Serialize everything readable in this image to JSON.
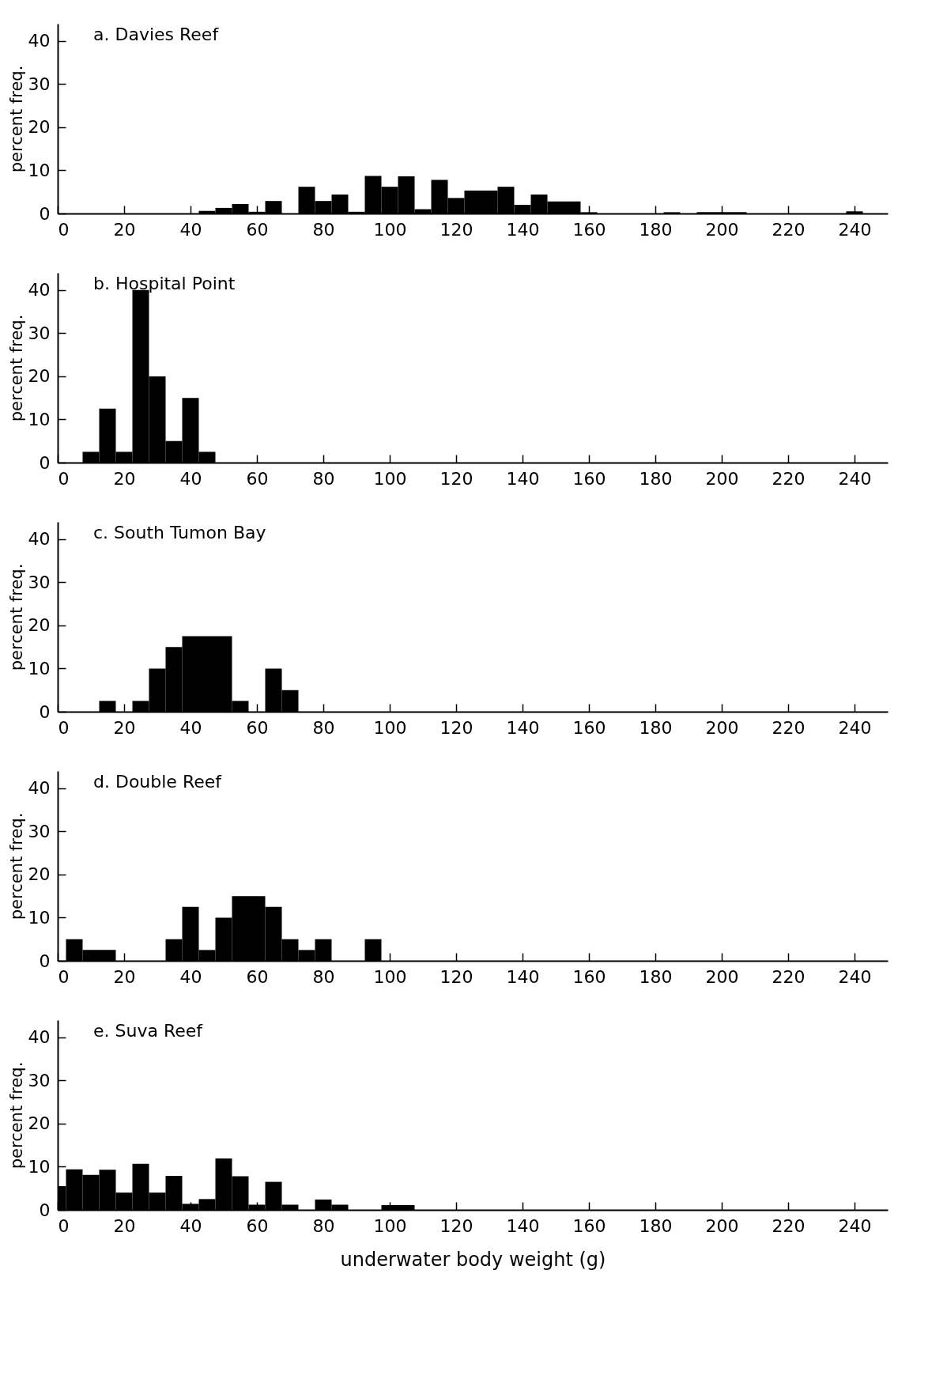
{
  "chart_data": [
    {
      "type": "histogram",
      "title": "a. Davies Reef",
      "ylabel": "percent freq.",
      "color": "#000000",
      "grid": false,
      "xlim": [
        0,
        250
      ],
      "xticks": [
        0,
        20,
        40,
        60,
        80,
        100,
        120,
        140,
        160,
        180,
        200,
        220,
        240
      ],
      "ylim": [
        0,
        44
      ],
      "yticks": [
        0,
        10,
        20,
        30,
        40
      ],
      "bins": [
        42.5,
        47.5,
        52.5,
        57.5,
        62.5,
        67.5,
        72.5,
        77.5,
        82.5,
        87.5,
        92.5,
        97.5,
        102.5,
        107.5,
        112.5,
        117.5,
        122.5,
        132.5,
        137.5,
        142.5,
        147.5,
        157.5,
        162.5,
        182.5,
        187.5,
        192.5,
        207.5,
        237.5,
        242.5
      ],
      "values": [
        0.6,
        1.3,
        2.2,
        0.4,
        2.9,
        0,
        6.2,
        2.9,
        4.4,
        0.4,
        8.7,
        6.2,
        8.6,
        1.0,
        7.8,
        3.6,
        5.3,
        6.2,
        2.0,
        4.4,
        2.8,
        0.3,
        0,
        0.3,
        0,
        0.3,
        0,
        0.5
      ]
    },
    {
      "type": "histogram",
      "title": "b. Hospital Point",
      "ylabel": "percent freq.",
      "color": "#000000",
      "grid": false,
      "xlim": [
        0,
        250
      ],
      "xticks": [
        0,
        20,
        40,
        60,
        80,
        100,
        120,
        140,
        160,
        180,
        200,
        220,
        240
      ],
      "ylim": [
        0,
        44
      ],
      "yticks": [
        0,
        10,
        20,
        30,
        40
      ],
      "bins": [
        7.5,
        12.5,
        17.5,
        22.5,
        27.5,
        32.5,
        37.5,
        42.5,
        47.5
      ],
      "values": [
        2.5,
        12.5,
        2.5,
        40,
        20,
        5,
        15,
        2.5
      ]
    },
    {
      "type": "histogram",
      "title": "c. South Tumon Bay",
      "ylabel": "percent freq.",
      "color": "#000000",
      "grid": false,
      "xlim": [
        0,
        250
      ],
      "xticks": [
        0,
        20,
        40,
        60,
        80,
        100,
        120,
        140,
        160,
        180,
        200,
        220,
        240
      ],
      "ylim": [
        0,
        44
      ],
      "yticks": [
        0,
        10,
        20,
        30,
        40
      ],
      "bins": [
        12.5,
        17.5,
        22.5,
        27.5,
        32.5,
        37.5,
        52.5,
        57.5,
        62.5,
        67.5,
        72.5
      ],
      "values": [
        2.5,
        0,
        2.5,
        10,
        15,
        17.5,
        2.5,
        0,
        10,
        5
      ]
    },
    {
      "type": "histogram",
      "title": "d. Double Reef",
      "ylabel": "percent freq.",
      "color": "#000000",
      "grid": false,
      "xlim": [
        0,
        250
      ],
      "xticks": [
        0,
        20,
        40,
        60,
        80,
        100,
        120,
        140,
        160,
        180,
        200,
        220,
        240
      ],
      "ylim": [
        0,
        44
      ],
      "yticks": [
        0,
        10,
        20,
        30,
        40
      ],
      "bins": [
        2.5,
        7.5,
        17.5,
        32.5,
        37.5,
        42.5,
        47.5,
        52.5,
        62.5,
        67.5,
        72.5,
        77.5,
        82.5,
        92.5,
        97.5
      ],
      "values": [
        5,
        2.5,
        0,
        5,
        12.5,
        2.5,
        10,
        15,
        12.5,
        5,
        2.5,
        5,
        0,
        5
      ]
    },
    {
      "type": "histogram",
      "title": "e. Suva Reef",
      "ylabel": "percent freq.",
      "xlabel": "underwater body weight (g)",
      "color": "#000000",
      "grid": false,
      "xlim": [
        0,
        250
      ],
      "xticks": [
        0,
        20,
        40,
        60,
        80,
        100,
        120,
        140,
        160,
        180,
        200,
        220,
        240
      ],
      "ylim": [
        0,
        44
      ],
      "yticks": [
        0,
        10,
        20,
        30,
        40
      ],
      "bins": [
        0,
        2.5,
        7.5,
        12.5,
        17.5,
        22.5,
        27.5,
        32.5,
        37.5,
        42.5,
        47.5,
        52.5,
        57.5,
        62.5,
        67.5,
        72.5,
        77.5,
        82.5,
        87.5,
        97.5,
        107.5
      ],
      "values": [
        5.5,
        9.4,
        8.1,
        9.3,
        4.0,
        10.7,
        4.0,
        7.9,
        1.4,
        2.5,
        11.9,
        7.8,
        1.2,
        6.5,
        1.2,
        0,
        2.4,
        1.2,
        0,
        1.1
      ]
    }
  ]
}
